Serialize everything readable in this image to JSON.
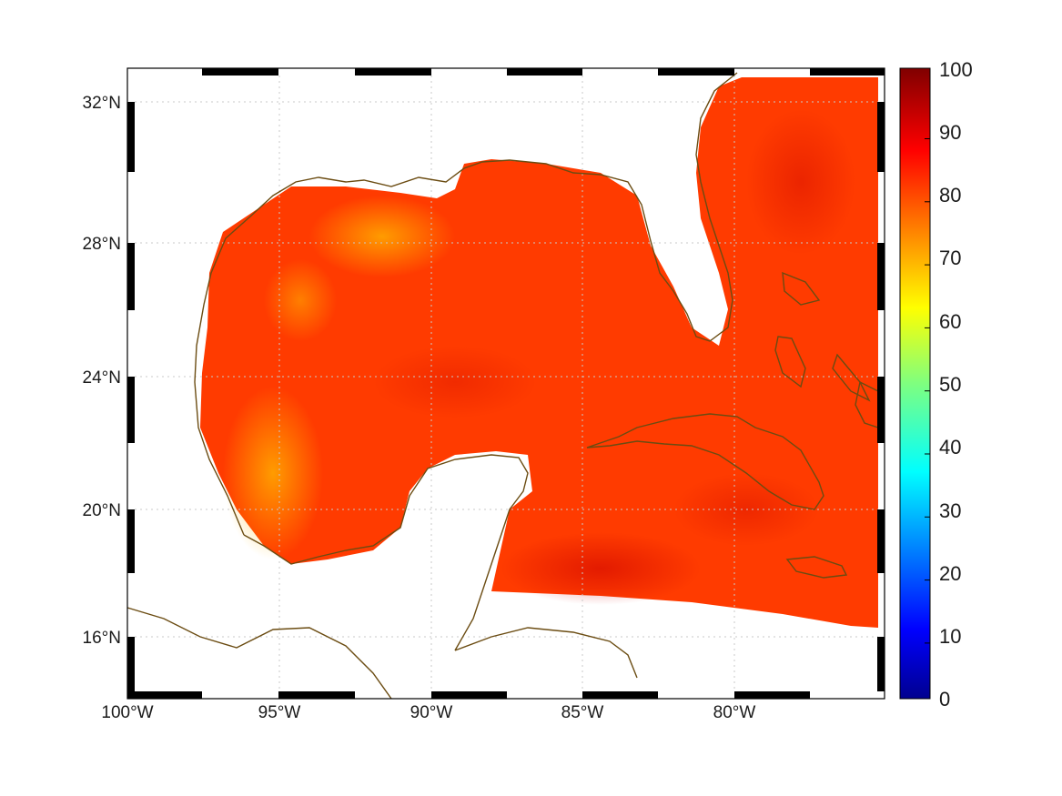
{
  "map": {
    "lon_range": [
      -100,
      -75
    ],
    "lat_range": [
      14.2,
      33
    ],
    "lat_labels": [
      {
        "lat": 32,
        "label": "32°N"
      },
      {
        "lat": 28,
        "label": "28°N"
      },
      {
        "lat": 24,
        "label": "24°N"
      },
      {
        "lat": 20,
        "label": "20°N"
      },
      {
        "lat": 16,
        "label": "16°N"
      }
    ],
    "lon_labels": [
      {
        "lon": -100,
        "label": "100°W"
      },
      {
        "lon": -95,
        "label": "95°W"
      },
      {
        "lon": -90,
        "label": "90°W"
      },
      {
        "lon": -85,
        "label": "85°W"
      },
      {
        "lon": -80,
        "label": "80°W"
      }
    ],
    "gridlines": true,
    "coastline_color": "#6b4c12",
    "land_color": "#ffffff"
  },
  "colorbar": {
    "range": [
      0,
      100
    ],
    "ticks": [
      "0",
      "10",
      "20",
      "30",
      "40",
      "50",
      "60",
      "70",
      "80",
      "90",
      "100"
    ],
    "colormap": "jet",
    "placement": "right"
  },
  "field": {
    "typical_value": 85,
    "range_observed": [
      68,
      97
    ]
  }
}
